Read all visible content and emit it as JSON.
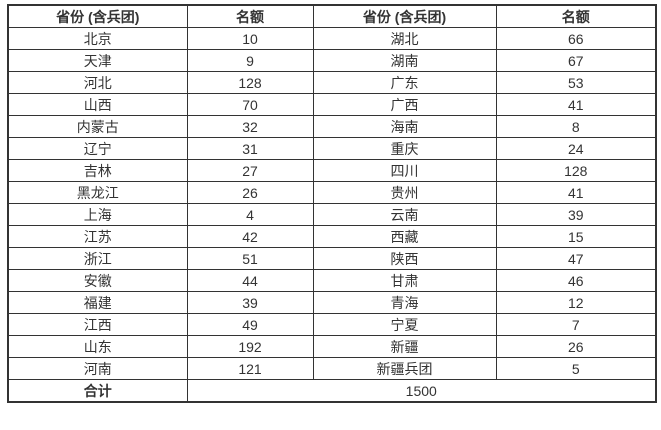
{
  "table": {
    "headers": [
      "省份 (含兵团)",
      "名额",
      "省份 (含兵团)",
      "名额"
    ],
    "rows": [
      [
        "北京",
        "10",
        "湖北",
        "66"
      ],
      [
        "天津",
        "9",
        "湖南",
        "67"
      ],
      [
        "河北",
        "128",
        "广东",
        "53"
      ],
      [
        "山西",
        "70",
        "广西",
        "41"
      ],
      [
        "内蒙古",
        "32",
        "海南",
        "8"
      ],
      [
        "辽宁",
        "31",
        "重庆",
        "24"
      ],
      [
        "吉林",
        "27",
        "四川",
        "128"
      ],
      [
        "黑龙江",
        "26",
        "贵州",
        "41"
      ],
      [
        "上海",
        "4",
        "云南",
        "39"
      ],
      [
        "江苏",
        "42",
        "西藏",
        "15"
      ],
      [
        "浙江",
        "51",
        "陕西",
        "47"
      ],
      [
        "安徽",
        "44",
        "甘肃",
        "46"
      ],
      [
        "福建",
        "39",
        "青海",
        "12"
      ],
      [
        "江西",
        "49",
        "宁夏",
        "7"
      ],
      [
        "山东",
        "192",
        "新疆",
        "26"
      ],
      [
        "河南",
        "121",
        "新疆兵团",
        "5"
      ]
    ],
    "total_label": "合计",
    "total_value": "1500"
  },
  "colors": {
    "border": "#333333",
    "text": "#333333",
    "background": "#ffffff"
  }
}
